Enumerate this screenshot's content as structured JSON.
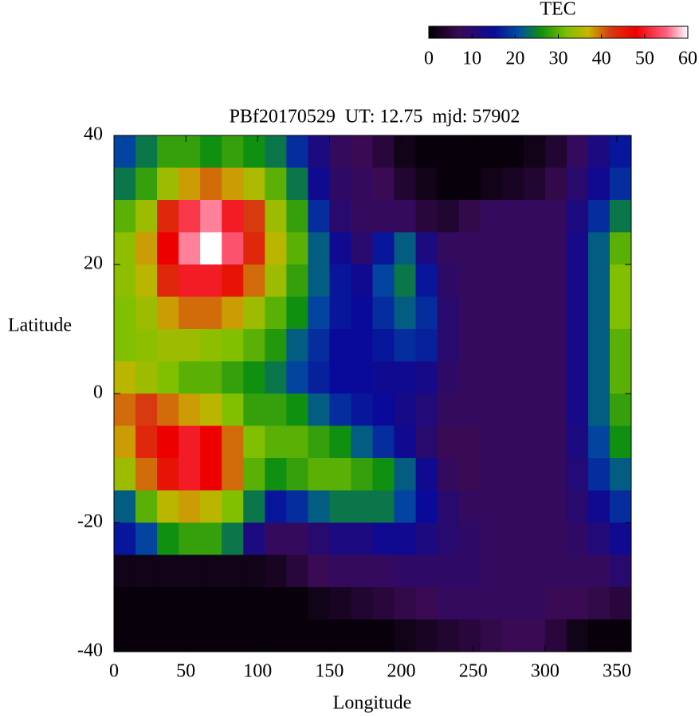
{
  "chart_data": {
    "type": "heatmap",
    "title": "PBf20170529  UT: 12.75  mjd: 57902",
    "x_label": "Longitude",
    "y_label": "Latitude",
    "colorbar_label": "TEC",
    "xlim": [
      0,
      360
    ],
    "ylim": [
      -40,
      40
    ],
    "xticks": [
      0,
      50,
      100,
      150,
      200,
      250,
      300,
      350
    ],
    "yticks": [
      -40,
      -20,
      0,
      20,
      40
    ],
    "clim": [
      0,
      60
    ],
    "cticks": [
      0,
      10,
      20,
      30,
      40,
      50,
      60
    ],
    "colorscale": [
      {
        "value": 0,
        "color": "#000000"
      },
      {
        "value": 7,
        "color": "#3a0a55"
      },
      {
        "value": 15,
        "color": "#0a0a9a"
      },
      {
        "value": 21,
        "color": "#0050a0"
      },
      {
        "value": 26,
        "color": "#109010"
      },
      {
        "value": 32,
        "color": "#80c000"
      },
      {
        "value": 37,
        "color": "#c8b400"
      },
      {
        "value": 42,
        "color": "#d83a10"
      },
      {
        "value": 48,
        "color": "#ee0000"
      },
      {
        "value": 55,
        "color": "#ff6080"
      },
      {
        "value": 60,
        "color": "#ffffff"
      }
    ],
    "x": [
      7.5,
      22.5,
      37.5,
      52.5,
      67.5,
      82.5,
      97.5,
      112.5,
      127.5,
      142.5,
      157.5,
      172.5,
      187.5,
      202.5,
      217.5,
      232.5,
      247.5,
      262.5,
      277.5,
      292.5,
      307.5,
      322.5,
      337.5,
      352.5
    ],
    "y": [
      37.5,
      32.5,
      27.5,
      22.5,
      17.5,
      12.5,
      7.5,
      2.5,
      -2.5,
      -7.5,
      -12.5,
      -17.5,
      -22.5,
      -27.5,
      -32.5,
      -37.5
    ],
    "values": [
      [
        20,
        24,
        28,
        28,
        26,
        28,
        26,
        24,
        18,
        12,
        8,
        7,
        5,
        2,
        1,
        1,
        1,
        1,
        1,
        2,
        4,
        8,
        12,
        16
      ],
      [
        24,
        28,
        34,
        38,
        40,
        38,
        35,
        30,
        24,
        14,
        9,
        8,
        7,
        4,
        2,
        1,
        1,
        2,
        3,
        4,
        6,
        10,
        14,
        18
      ],
      [
        30,
        34,
        44,
        52,
        56,
        50,
        42,
        34,
        28,
        18,
        10,
        8,
        8,
        8,
        5,
        4,
        6,
        8,
        8,
        8,
        8,
        12,
        18,
        24
      ],
      [
        33,
        38,
        48,
        56,
        60,
        54,
        44,
        36,
        30,
        22,
        14,
        10,
        16,
        22,
        12,
        8,
        8,
        8,
        8,
        8,
        8,
        13,
        22,
        30
      ],
      [
        33,
        36,
        44,
        50,
        50,
        46,
        40,
        34,
        28,
        22,
        16,
        14,
        20,
        24,
        16,
        9,
        8,
        8,
        8,
        8,
        8,
        13,
        22,
        32
      ],
      [
        32,
        34,
        38,
        40,
        40,
        38,
        34,
        30,
        26,
        20,
        16,
        15,
        18,
        22,
        18,
        10,
        8,
        8,
        8,
        8,
        8,
        13,
        22,
        32
      ],
      [
        32,
        33,
        34,
        34,
        33,
        32,
        30,
        27,
        22,
        18,
        15,
        15,
        16,
        18,
        17,
        10,
        8,
        8,
        8,
        8,
        8,
        13,
        22,
        30
      ],
      [
        36,
        34,
        32,
        30,
        30,
        28,
        26,
        24,
        20,
        17,
        15,
        15,
        14,
        14,
        13,
        9,
        8,
        8,
        8,
        8,
        8,
        13,
        22,
        30
      ],
      [
        40,
        42,
        40,
        38,
        36,
        32,
        28,
        28,
        26,
        22,
        18,
        16,
        15,
        13,
        11,
        8,
        8,
        8,
        8,
        8,
        8,
        13,
        22,
        28
      ],
      [
        38,
        44,
        48,
        50,
        48,
        40,
        32,
        30,
        30,
        28,
        26,
        22,
        18,
        14,
        10,
        7,
        7,
        8,
        8,
        8,
        8,
        12,
        20,
        26
      ],
      [
        34,
        40,
        46,
        50,
        48,
        40,
        30,
        26,
        28,
        30,
        30,
        28,
        26,
        22,
        14,
        8,
        7,
        8,
        8,
        8,
        8,
        11,
        18,
        22
      ],
      [
        22,
        30,
        36,
        38,
        36,
        32,
        24,
        16,
        18,
        22,
        24,
        24,
        24,
        20,
        15,
        10,
        8,
        8,
        8,
        8,
        8,
        10,
        14,
        18
      ],
      [
        16,
        20,
        26,
        28,
        28,
        24,
        12,
        8,
        8,
        10,
        12,
        12,
        14,
        14,
        12,
        10,
        9,
        8,
        8,
        8,
        8,
        9,
        11,
        14
      ],
      [
        2,
        2,
        2,
        2,
        2,
        2,
        2,
        3,
        5,
        7,
        8,
        8,
        8,
        9,
        9,
        9,
        9,
        8,
        8,
        8,
        8,
        8,
        8,
        10
      ],
      [
        1,
        1,
        1,
        1,
        1,
        1,
        1,
        1,
        1,
        2,
        3,
        4,
        5,
        6,
        7,
        8,
        8,
        8,
        8,
        8,
        7,
        7,
        6,
        5
      ],
      [
        1,
        1,
        1,
        1,
        1,
        1,
        1,
        1,
        1,
        1,
        1,
        1,
        1,
        2,
        3,
        4,
        5,
        6,
        7,
        7,
        5,
        2,
        1,
        1
      ]
    ]
  }
}
